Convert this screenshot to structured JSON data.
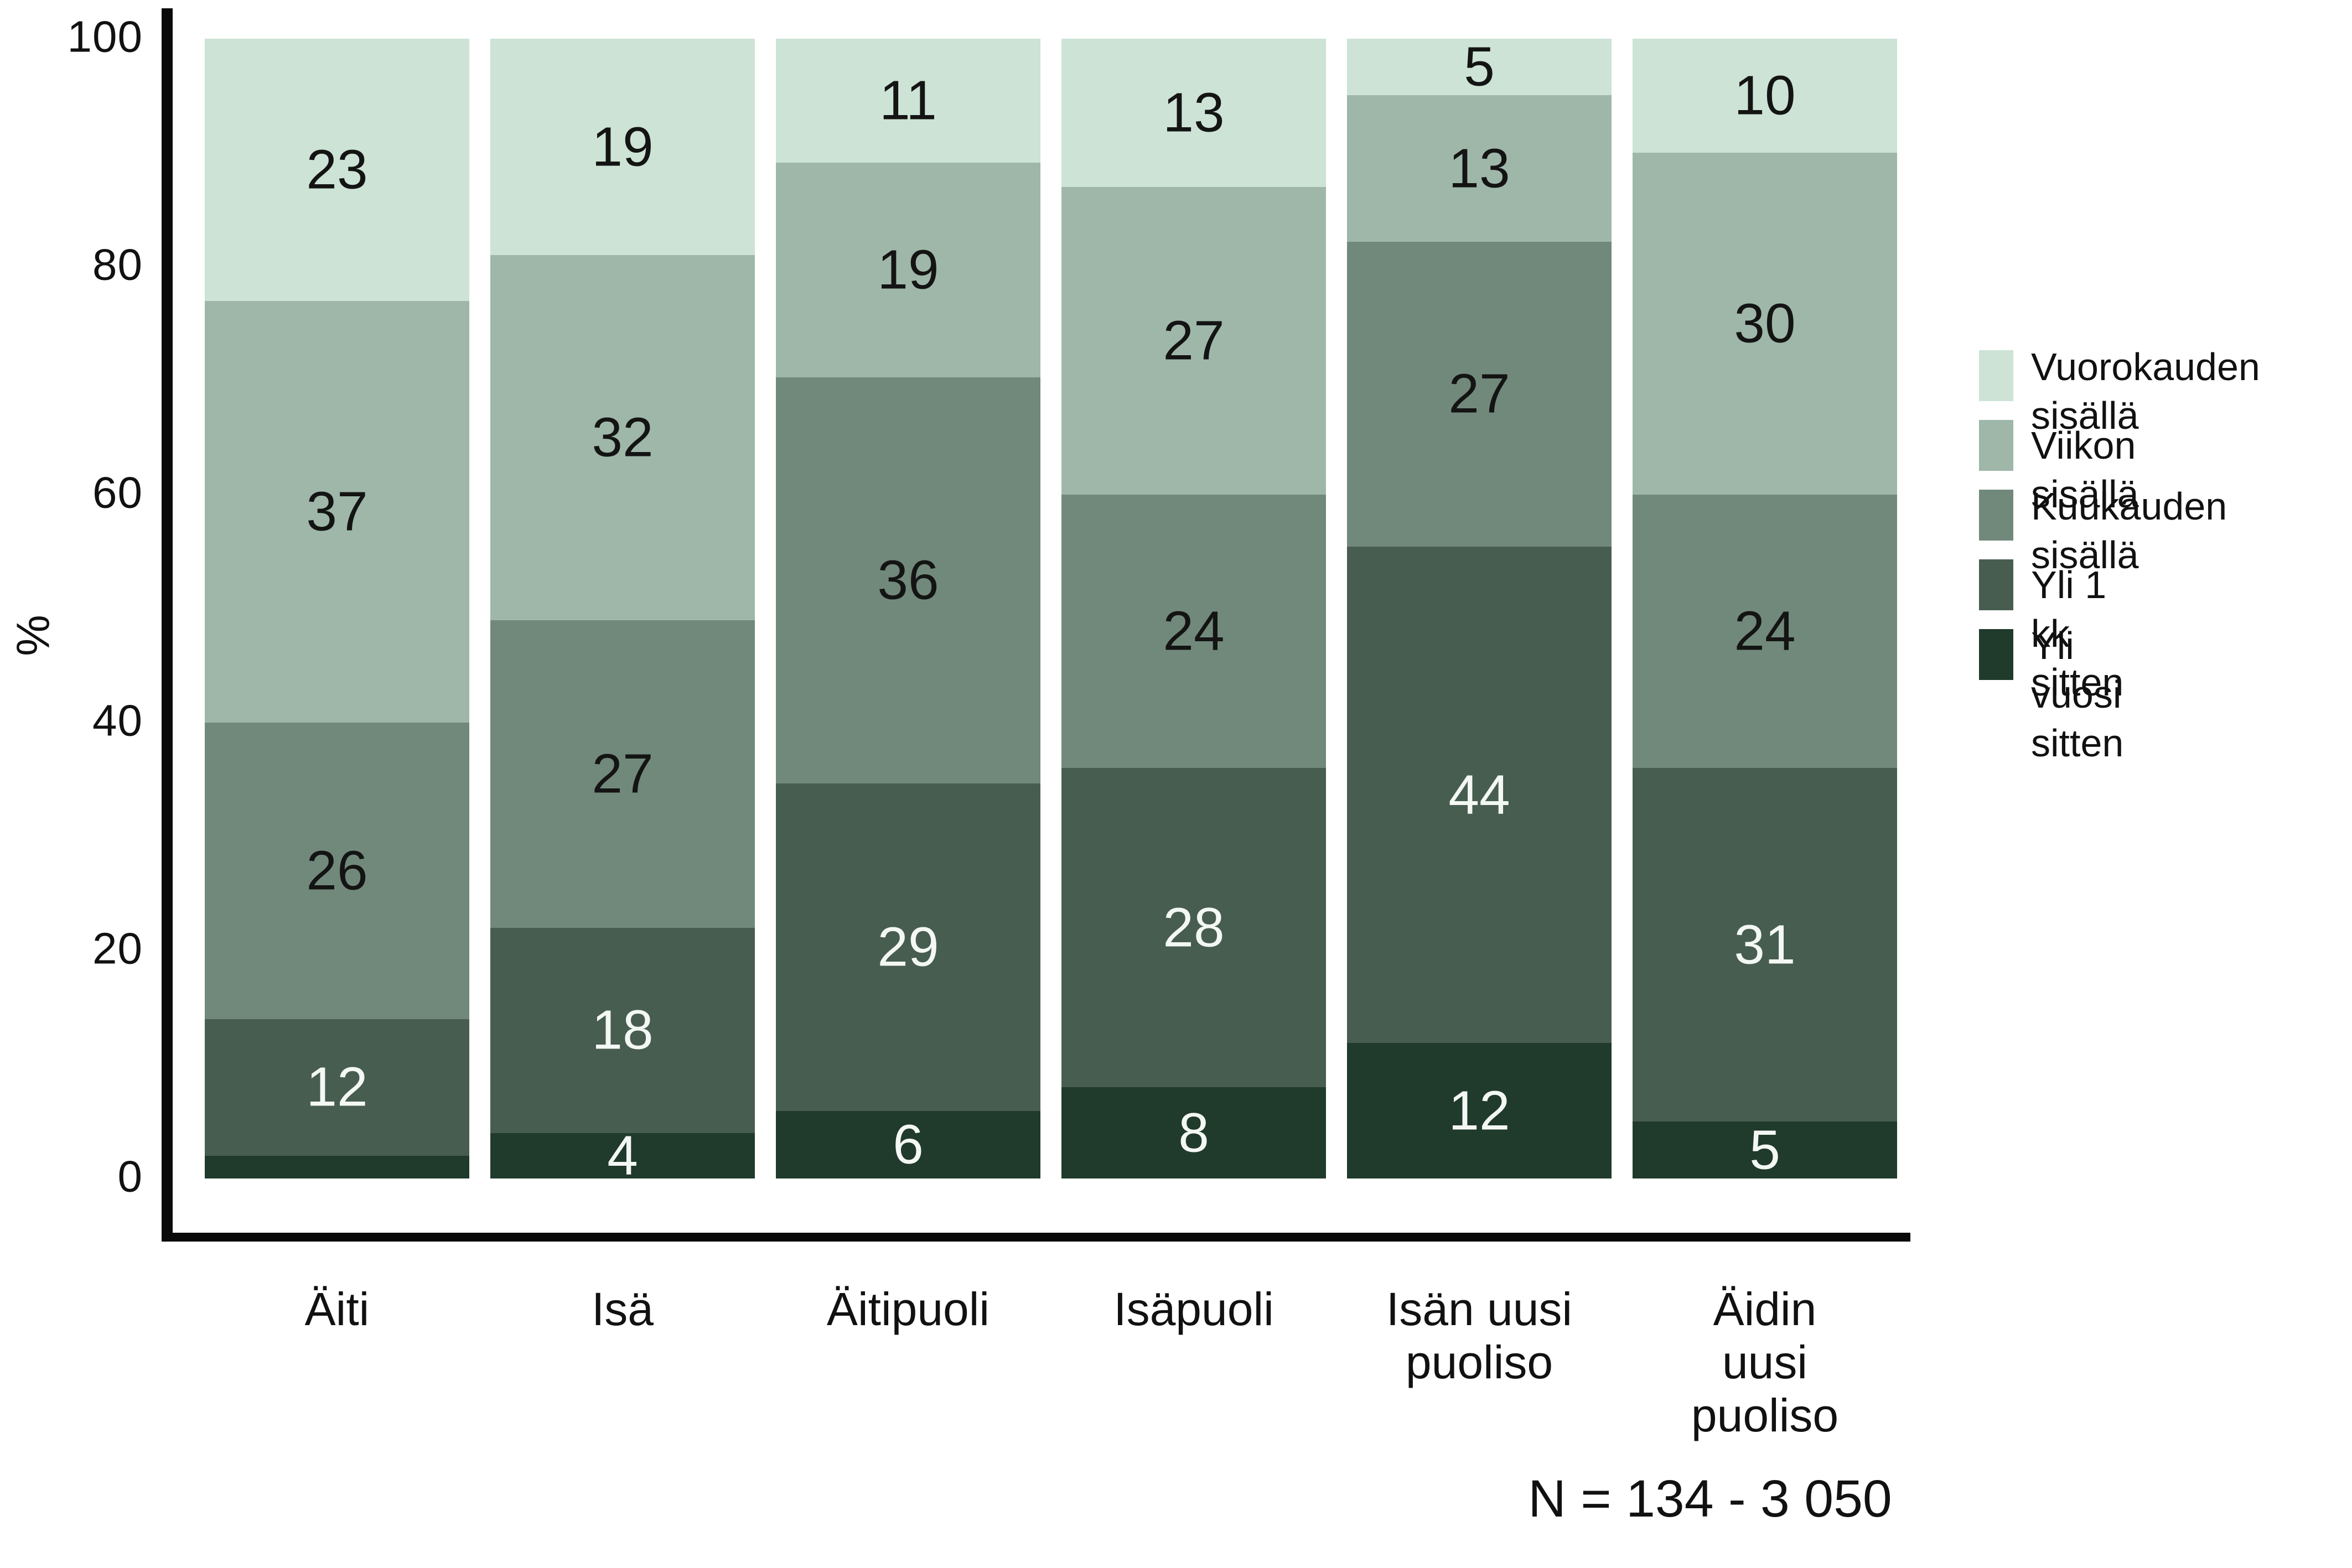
{
  "chart_data": {
    "type": "bar",
    "stacked": true,
    "percent_stacked": true,
    "ylabel": "%",
    "ylim": [
      0,
      100
    ],
    "yticks": [
      0,
      20,
      40,
      60,
      80,
      100
    ],
    "grid": false,
    "legend_position": "right",
    "categories": [
      "Äiti",
      "Isä",
      "Äitipuoli",
      "Isäpuoli",
      "Isän uusi\npuoliso",
      "Äidin\nuusi\npuoliso"
    ],
    "series": [
      {
        "name": "Yli vuosi sitten",
        "color": "#203a2b",
        "label_color": "#f4f8f4",
        "values": [
          2,
          4,
          6,
          8,
          12,
          5
        ],
        "labels": [
          "",
          "4",
          "6",
          "8",
          "12",
          "5"
        ]
      },
      {
        "name": "Yli 1 kk sitten",
        "color": "#475d50",
        "label_color": "#f4f8f4",
        "values": [
          12,
          18,
          29,
          28,
          44,
          31
        ],
        "labels": [
          "12",
          "18",
          "29",
          "28",
          "44",
          "31"
        ]
      },
      {
        "name": "Kuukauden sisällä",
        "color": "#71897b",
        "label_color": "#141414",
        "values": [
          26,
          27,
          36,
          24,
          27,
          24
        ],
        "labels": [
          "26",
          "27",
          "36",
          "24",
          "27",
          "24"
        ]
      },
      {
        "name": "Viikon sisällä",
        "color": "#9eb7a9",
        "label_color": "#141414",
        "values": [
          37,
          32,
          19,
          27,
          13,
          30
        ],
        "labels": [
          "37",
          "32",
          "19",
          "27",
          "13",
          "30"
        ]
      },
      {
        "name": "Vuorokauden sisällä",
        "color": "#cce3d5",
        "label_color": "#141414",
        "values": [
          23,
          19,
          11,
          13,
          5,
          10
        ],
        "labels": [
          "23",
          "19",
          "11",
          "13",
          "5",
          "10"
        ]
      }
    ],
    "legend": [
      {
        "label": "Vuorokauden\nsisällä",
        "color": "#cce3d5"
      },
      {
        "label": "Viikon sisällä",
        "color": "#9eb7a9"
      },
      {
        "label": "Kuukauden\nsisällä",
        "color": "#71897b"
      },
      {
        "label": "Yli 1 kk sitten",
        "color": "#475d50"
      },
      {
        "label": "Yli vuosi\nsitten",
        "color": "#203a2b"
      }
    ],
    "note": "N = 134 - 3 050"
  }
}
